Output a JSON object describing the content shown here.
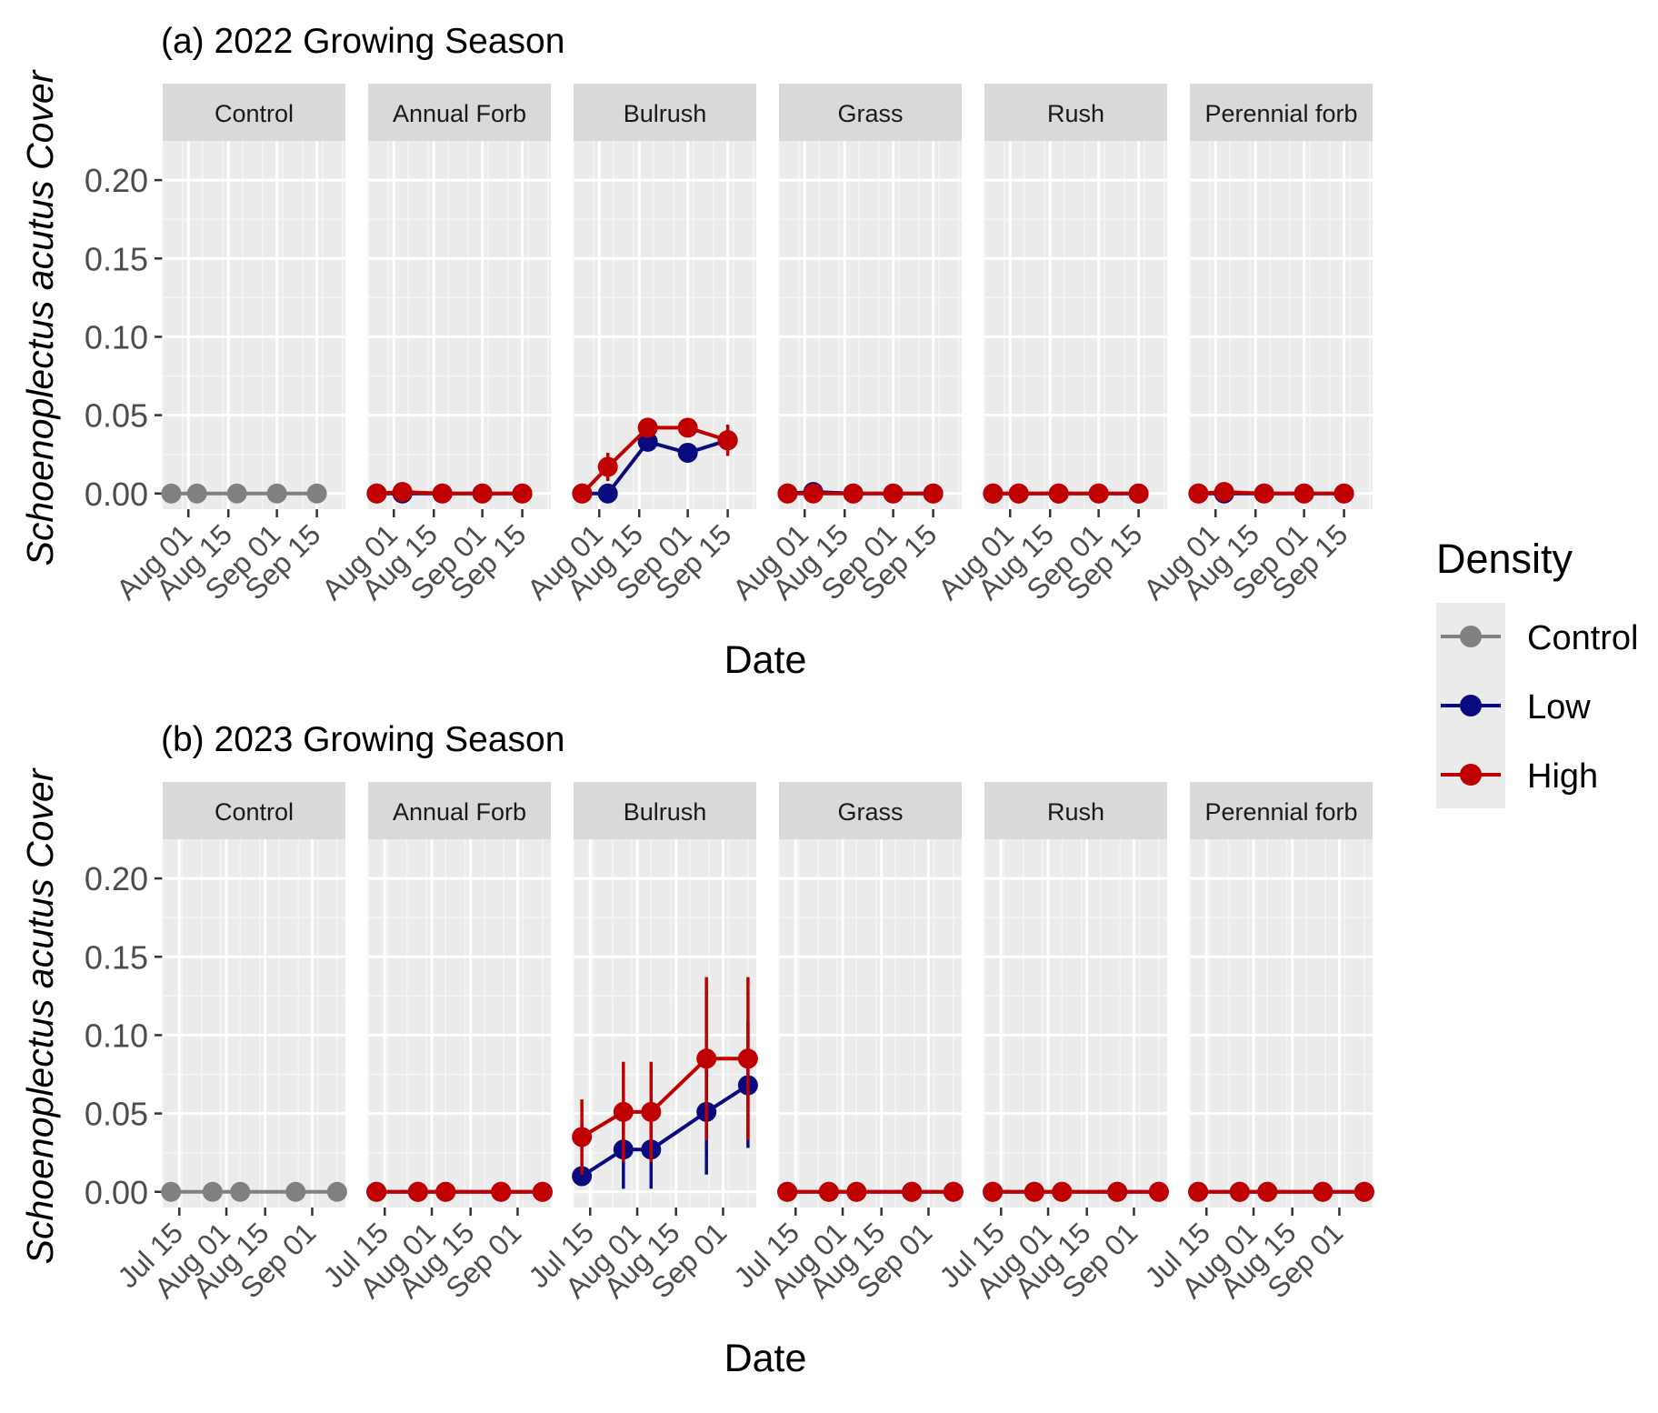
{
  "figure": {
    "legend": {
      "title": "Density",
      "position": "right",
      "items": [
        {
          "label": "Control",
          "color": "#808080"
        },
        {
          "label": "Low",
          "color": "#0a0a80"
        },
        {
          "label": "High",
          "color": "#c00000"
        }
      ]
    }
  },
  "chart_data": [
    {
      "type": "line",
      "title": "(a) 2022 Growing Season",
      "xlabel": "Date",
      "ylabel": "Schoenoplectus acutus Cover",
      "ylim": [
        -0.01,
        0.225
      ],
      "yticks": [
        "0.00",
        "0.05",
        "0.10",
        "0.15",
        "0.20"
      ],
      "ytick_values": [
        0,
        0.05,
        0.1,
        0.15,
        0.2
      ],
      "xlim": [
        "2022-07-23",
        "2022-09-25"
      ],
      "xticks": [
        {
          "date": "2022-08-01",
          "label": "Aug 01"
        },
        {
          "date": "2022-08-15",
          "label": "Aug 15"
        },
        {
          "date": "2022-09-01",
          "label": "Sep 01"
        },
        {
          "date": "2022-09-15",
          "label": "Sep 15"
        }
      ],
      "grid": true,
      "panels": [
        {
          "name": "Control",
          "series": [
            {
              "name": "Control",
              "points": [
                {
                  "x": "2022-07-26",
                  "y": 0,
                  "err": 0
                },
                {
                  "x": "2022-08-04",
                  "y": 0,
                  "err": 0
                },
                {
                  "x": "2022-08-18",
                  "y": 0,
                  "err": 0
                },
                {
                  "x": "2022-09-01",
                  "y": 0,
                  "err": 0
                },
                {
                  "x": "2022-09-15",
                  "y": 0,
                  "err": 0
                }
              ]
            }
          ]
        },
        {
          "name": "Annual Forb",
          "series": [
            {
              "name": "Low",
              "points": [
                {
                  "x": "2022-07-26",
                  "y": 0,
                  "err": 0
                },
                {
                  "x": "2022-08-04",
                  "y": 0,
                  "err": 0
                },
                {
                  "x": "2022-08-18",
                  "y": 0,
                  "err": 0
                },
                {
                  "x": "2022-09-01",
                  "y": 0,
                  "err": 0
                },
                {
                  "x": "2022-09-15",
                  "y": 0,
                  "err": 0
                }
              ]
            },
            {
              "name": "High",
              "points": [
                {
                  "x": "2022-07-26",
                  "y": 0,
                  "err": 0
                },
                {
                  "x": "2022-08-04",
                  "y": 0.001,
                  "err": 0
                },
                {
                  "x": "2022-08-18",
                  "y": 0,
                  "err": 0
                },
                {
                  "x": "2022-09-01",
                  "y": 0,
                  "err": 0
                },
                {
                  "x": "2022-09-15",
                  "y": 0,
                  "err": 0
                }
              ]
            }
          ]
        },
        {
          "name": "Bulrush",
          "series": [
            {
              "name": "Low",
              "points": [
                {
                  "x": "2022-07-26",
                  "y": 0,
                  "err": 0
                },
                {
                  "x": "2022-08-04",
                  "y": 0,
                  "err": 0
                },
                {
                  "x": "2022-08-18",
                  "y": 0.033,
                  "err": 0.006
                },
                {
                  "x": "2022-09-01",
                  "y": 0.026,
                  "err": 0.006
                },
                {
                  "x": "2022-09-15",
                  "y": 0.034,
                  "err": 0.006
                }
              ]
            },
            {
              "name": "High",
              "points": [
                {
                  "x": "2022-07-26",
                  "y": 0,
                  "err": 0
                },
                {
                  "x": "2022-08-04",
                  "y": 0.017,
                  "err": 0.009
                },
                {
                  "x": "2022-08-18",
                  "y": 0.042,
                  "err": 0.006
                },
                {
                  "x": "2022-09-01",
                  "y": 0.042,
                  "err": 0.006
                },
                {
                  "x": "2022-09-15",
                  "y": 0.034,
                  "err": 0.01
                }
              ]
            }
          ]
        },
        {
          "name": "Grass",
          "series": [
            {
              "name": "Low",
              "points": [
                {
                  "x": "2022-07-26",
                  "y": 0,
                  "err": 0
                },
                {
                  "x": "2022-08-04",
                  "y": 0.001,
                  "err": 0
                },
                {
                  "x": "2022-08-18",
                  "y": 0,
                  "err": 0
                },
                {
                  "x": "2022-09-01",
                  "y": 0,
                  "err": 0
                },
                {
                  "x": "2022-09-15",
                  "y": 0,
                  "err": 0
                }
              ]
            },
            {
              "name": "High",
              "points": [
                {
                  "x": "2022-07-26",
                  "y": 0,
                  "err": 0
                },
                {
                  "x": "2022-08-04",
                  "y": 0,
                  "err": 0
                },
                {
                  "x": "2022-08-18",
                  "y": 0,
                  "err": 0
                },
                {
                  "x": "2022-09-01",
                  "y": 0,
                  "err": 0
                },
                {
                  "x": "2022-09-15",
                  "y": 0,
                  "err": 0
                }
              ]
            }
          ]
        },
        {
          "name": "Rush",
          "series": [
            {
              "name": "Low",
              "points": [
                {
                  "x": "2022-07-26",
                  "y": 0,
                  "err": 0
                },
                {
                  "x": "2022-08-04",
                  "y": 0,
                  "err": 0
                },
                {
                  "x": "2022-08-18",
                  "y": 0,
                  "err": 0
                },
                {
                  "x": "2022-09-01",
                  "y": 0,
                  "err": 0
                },
                {
                  "x": "2022-09-15",
                  "y": 0,
                  "err": 0
                }
              ]
            },
            {
              "name": "High",
              "points": [
                {
                  "x": "2022-07-26",
                  "y": 0,
                  "err": 0
                },
                {
                  "x": "2022-08-04",
                  "y": 0,
                  "err": 0
                },
                {
                  "x": "2022-08-18",
                  "y": 0,
                  "err": 0
                },
                {
                  "x": "2022-09-01",
                  "y": 0,
                  "err": 0
                },
                {
                  "x": "2022-09-15",
                  "y": 0,
                  "err": 0
                }
              ]
            }
          ]
        },
        {
          "name": "Perennial forb",
          "series": [
            {
              "name": "Low",
              "points": [
                {
                  "x": "2022-07-26",
                  "y": 0,
                  "err": 0
                },
                {
                  "x": "2022-08-04",
                  "y": 0,
                  "err": 0
                },
                {
                  "x": "2022-08-18",
                  "y": 0,
                  "err": 0
                },
                {
                  "x": "2022-09-01",
                  "y": 0,
                  "err": 0
                },
                {
                  "x": "2022-09-15",
                  "y": 0,
                  "err": 0
                }
              ]
            },
            {
              "name": "High",
              "points": [
                {
                  "x": "2022-07-26",
                  "y": 0,
                  "err": 0
                },
                {
                  "x": "2022-08-04",
                  "y": 0.001,
                  "err": 0
                },
                {
                  "x": "2022-08-18",
                  "y": 0,
                  "err": 0
                },
                {
                  "x": "2022-09-01",
                  "y": 0,
                  "err": 0
                },
                {
                  "x": "2022-09-15",
                  "y": 0,
                  "err": 0
                }
              ]
            }
          ]
        }
      ]
    },
    {
      "type": "line",
      "title": "(b) 2023 Growing Season",
      "xlabel": "Date",
      "ylabel": "Schoenoplectus acutus Cover",
      "ylim": [
        -0.01,
        0.225
      ],
      "yticks": [
        "0.00",
        "0.05",
        "0.10",
        "0.15",
        "0.20"
      ],
      "ytick_values": [
        0,
        0.05,
        0.1,
        0.15,
        0.2
      ],
      "xlim": [
        "2023-07-09",
        "2023-09-13"
      ],
      "xticks": [
        {
          "date": "2023-07-15",
          "label": "Jul 15"
        },
        {
          "date": "2023-08-01",
          "label": "Aug 01"
        },
        {
          "date": "2023-08-15",
          "label": "Aug 15"
        },
        {
          "date": "2023-09-01",
          "label": "Sep 01"
        }
      ],
      "grid": true,
      "panels": [
        {
          "name": "Control",
          "series": [
            {
              "name": "Control",
              "points": [
                {
                  "x": "2023-07-12",
                  "y": 0,
                  "err": 0
                },
                {
                  "x": "2023-07-27",
                  "y": 0,
                  "err": 0
                },
                {
                  "x": "2023-08-06",
                  "y": 0,
                  "err": 0
                },
                {
                  "x": "2023-08-26",
                  "y": 0,
                  "err": 0
                },
                {
                  "x": "2023-09-10",
                  "y": 0,
                  "err": 0
                }
              ]
            }
          ]
        },
        {
          "name": "Annual Forb",
          "series": [
            {
              "name": "Low",
              "points": [
                {
                  "x": "2023-07-12",
                  "y": 0,
                  "err": 0
                },
                {
                  "x": "2023-07-27",
                  "y": 0,
                  "err": 0
                },
                {
                  "x": "2023-08-06",
                  "y": 0,
                  "err": 0
                },
                {
                  "x": "2023-08-26",
                  "y": 0,
                  "err": 0
                },
                {
                  "x": "2023-09-10",
                  "y": 0,
                  "err": 0
                }
              ]
            },
            {
              "name": "High",
              "points": [
                {
                  "x": "2023-07-12",
                  "y": 0,
                  "err": 0
                },
                {
                  "x": "2023-07-27",
                  "y": 0,
                  "err": 0
                },
                {
                  "x": "2023-08-06",
                  "y": 0,
                  "err": 0
                },
                {
                  "x": "2023-08-26",
                  "y": 0,
                  "err": 0
                },
                {
                  "x": "2023-09-10",
                  "y": 0,
                  "err": 0
                }
              ]
            }
          ]
        },
        {
          "name": "Bulrush",
          "series": [
            {
              "name": "Low",
              "points": [
                {
                  "x": "2023-07-12",
                  "y": 0.01,
                  "err": 0.006
                },
                {
                  "x": "2023-07-27",
                  "y": 0.027,
                  "err": 0.025
                },
                {
                  "x": "2023-08-06",
                  "y": 0.027,
                  "err": 0.025
                },
                {
                  "x": "2023-08-26",
                  "y": 0.051,
                  "err": 0.04
                },
                {
                  "x": "2023-09-10",
                  "y": 0.068,
                  "err": 0.04
                }
              ]
            },
            {
              "name": "High",
              "points": [
                {
                  "x": "2023-07-12",
                  "y": 0.035,
                  "err": 0.024
                },
                {
                  "x": "2023-07-27",
                  "y": 0.051,
                  "err": 0.032
                },
                {
                  "x": "2023-08-06",
                  "y": 0.051,
                  "err": 0.032
                },
                {
                  "x": "2023-08-26",
                  "y": 0.085,
                  "err": 0.052
                },
                {
                  "x": "2023-09-10",
                  "y": 0.085,
                  "err": 0.052
                }
              ]
            }
          ]
        },
        {
          "name": "Grass",
          "series": [
            {
              "name": "Low",
              "points": [
                {
                  "x": "2023-07-12",
                  "y": 0,
                  "err": 0
                },
                {
                  "x": "2023-07-27",
                  "y": 0,
                  "err": 0
                },
                {
                  "x": "2023-08-06",
                  "y": 0,
                  "err": 0
                },
                {
                  "x": "2023-08-26",
                  "y": 0,
                  "err": 0
                },
                {
                  "x": "2023-09-10",
                  "y": 0,
                  "err": 0
                }
              ]
            },
            {
              "name": "High",
              "points": [
                {
                  "x": "2023-07-12",
                  "y": 0,
                  "err": 0
                },
                {
                  "x": "2023-07-27",
                  "y": 0,
                  "err": 0
                },
                {
                  "x": "2023-08-06",
                  "y": 0,
                  "err": 0
                },
                {
                  "x": "2023-08-26",
                  "y": 0,
                  "err": 0
                },
                {
                  "x": "2023-09-10",
                  "y": 0,
                  "err": 0
                }
              ]
            }
          ]
        },
        {
          "name": "Rush",
          "series": [
            {
              "name": "Low",
              "points": [
                {
                  "x": "2023-07-12",
                  "y": 0,
                  "err": 0
                },
                {
                  "x": "2023-07-27",
                  "y": 0,
                  "err": 0
                },
                {
                  "x": "2023-08-06",
                  "y": 0,
                  "err": 0
                },
                {
                  "x": "2023-08-26",
                  "y": 0,
                  "err": 0
                },
                {
                  "x": "2023-09-10",
                  "y": 0,
                  "err": 0
                }
              ]
            },
            {
              "name": "High",
              "points": [
                {
                  "x": "2023-07-12",
                  "y": 0,
                  "err": 0
                },
                {
                  "x": "2023-07-27",
                  "y": 0,
                  "err": 0
                },
                {
                  "x": "2023-08-06",
                  "y": 0,
                  "err": 0
                },
                {
                  "x": "2023-08-26",
                  "y": 0,
                  "err": 0
                },
                {
                  "x": "2023-09-10",
                  "y": 0,
                  "err": 0
                }
              ]
            }
          ]
        },
        {
          "name": "Perennial forb",
          "series": [
            {
              "name": "Low",
              "points": [
                {
                  "x": "2023-07-12",
                  "y": 0,
                  "err": 0
                },
                {
                  "x": "2023-07-27",
                  "y": 0,
                  "err": 0
                },
                {
                  "x": "2023-08-06",
                  "y": 0,
                  "err": 0
                },
                {
                  "x": "2023-08-26",
                  "y": 0,
                  "err": 0
                },
                {
                  "x": "2023-09-10",
                  "y": 0,
                  "err": 0
                }
              ]
            },
            {
              "name": "High",
              "points": [
                {
                  "x": "2023-07-12",
                  "y": 0,
                  "err": 0
                },
                {
                  "x": "2023-07-27",
                  "y": 0,
                  "err": 0
                },
                {
                  "x": "2023-08-06",
                  "y": 0,
                  "err": 0
                },
                {
                  "x": "2023-08-26",
                  "y": 0,
                  "err": 0
                },
                {
                  "x": "2023-09-10",
                  "y": 0,
                  "err": 0
                }
              ]
            }
          ]
        }
      ]
    }
  ]
}
